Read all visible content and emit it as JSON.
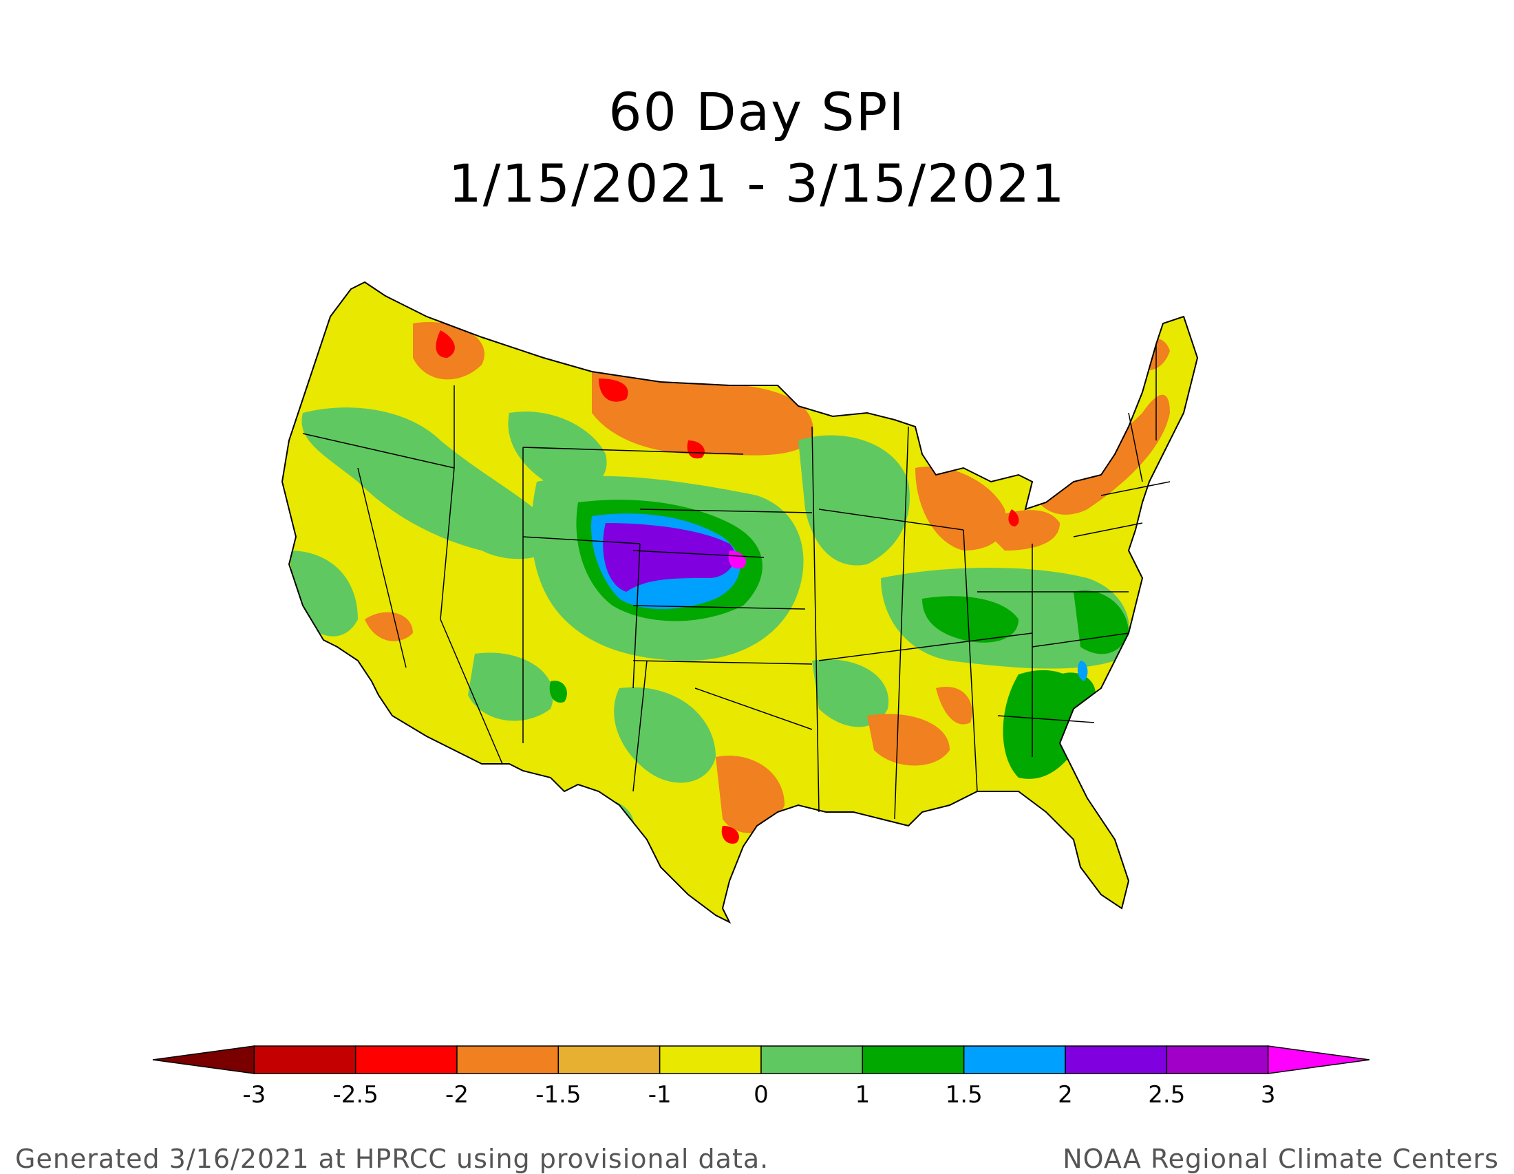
{
  "title": {
    "line1": "60 Day SPI",
    "line2": "1/15/2021 - 3/15/2021"
  },
  "legend": {
    "ticks": [
      "-3",
      "-2.5",
      "-2",
      "-1.5",
      "-1",
      "0",
      "1",
      "1.5",
      "2",
      "2.5",
      "3"
    ],
    "colors": [
      "#7a0000",
      "#c40000",
      "#ff0000",
      "#f08020",
      "#e8b030",
      "#e8e800",
      "#60c860",
      "#00a800",
      "#00a0ff",
      "#8000e0",
      "#a000c8",
      "#ff00ff"
    ]
  },
  "map": {
    "region": "contiguous-us",
    "features": [
      {
        "name": "lower-plains-wet-core",
        "level": 2.5
      },
      {
        "name": "kansas-wet-zone",
        "level": 2
      },
      {
        "name": "great-lakes-dry",
        "level": -1.5
      },
      {
        "name": "northern-plains-dry",
        "level": -2
      }
    ]
  },
  "footer": {
    "left": "Generated 3/16/2021 at HPRCC using provisional data.",
    "right": "NOAA Regional Climate Centers"
  }
}
